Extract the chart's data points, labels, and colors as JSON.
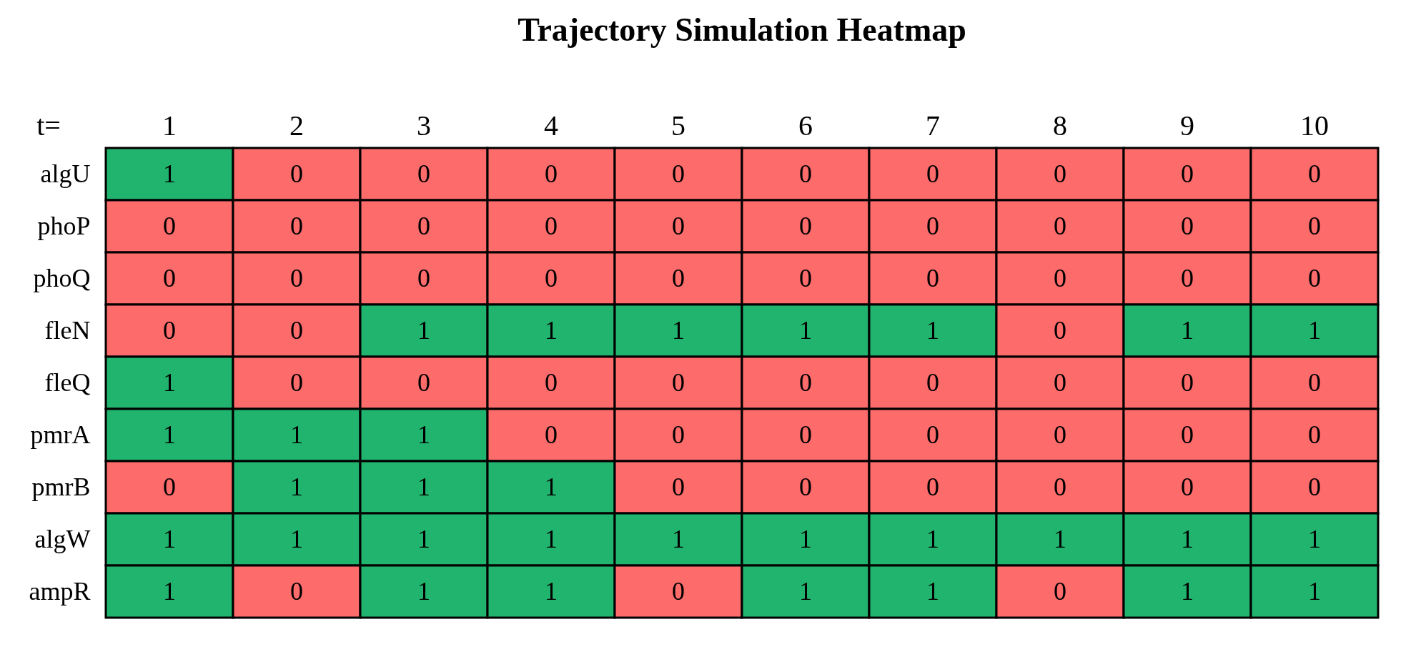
{
  "chart_data": {
    "type": "heatmap",
    "title": "Trajectory Simulation Heatmap",
    "xlabel": "t=",
    "categories": [
      "1",
      "2",
      "3",
      "4",
      "5",
      "6",
      "7",
      "8",
      "9",
      "10"
    ],
    "y_categories": [
      "algU",
      "phoP",
      "phoQ",
      "fleN",
      "fleQ",
      "pmrA",
      "pmrB",
      "algW",
      "ampR"
    ],
    "colors": [
      "#fe6b6b",
      "#20b46e"
    ],
    "data_labels": true,
    "cells": [
      [
        1,
        0,
        0,
        0,
        0,
        0,
        0,
        0,
        0,
        0
      ],
      [
        0,
        0,
        0,
        0,
        0,
        0,
        0,
        0,
        0,
        0
      ],
      [
        0,
        0,
        0,
        0,
        0,
        0,
        0,
        0,
        0,
        0
      ],
      [
        0,
        0,
        1,
        1,
        1,
        1,
        1,
        0,
        1,
        1
      ],
      [
        1,
        0,
        0,
        0,
        0,
        0,
        0,
        0,
        0,
        0
      ],
      [
        1,
        1,
        1,
        0,
        0,
        0,
        0,
        0,
        0,
        0
      ],
      [
        0,
        1,
        1,
        1,
        0,
        0,
        0,
        0,
        0,
        0
      ],
      [
        1,
        1,
        1,
        1,
        1,
        1,
        1,
        1,
        1,
        1
      ],
      [
        1,
        0,
        1,
        1,
        0,
        1,
        1,
        0,
        1,
        1
      ]
    ]
  }
}
